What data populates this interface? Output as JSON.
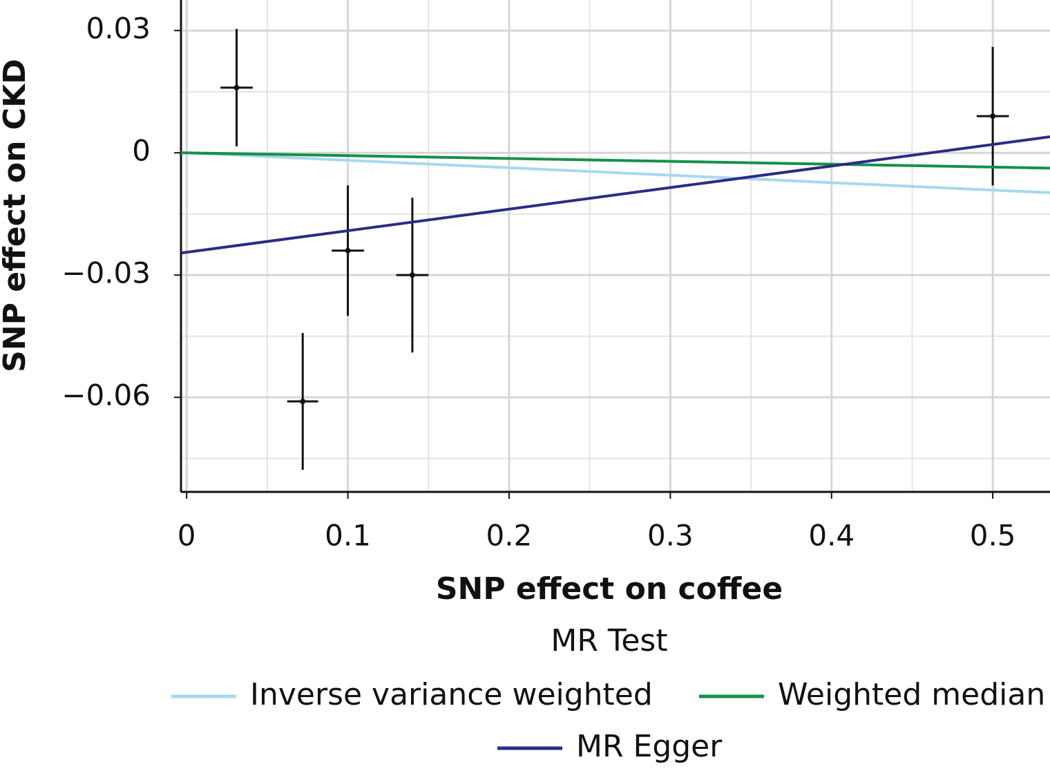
{
  "chart_data": {
    "type": "scatter",
    "xlabel": "SNP effect on coffee",
    "ylabel": "SNP effect on CKD",
    "xlim": [
      -0.0035,
      0.5355
    ],
    "ylim": [
      -0.0832,
      0.0375
    ],
    "xticks": [
      0,
      0.1,
      0.2,
      0.3,
      0.4,
      0.5
    ],
    "yticks": [
      {
        "value": -0.06,
        "label": "−0.06"
      },
      {
        "value": -0.03,
        "label": "−0.03"
      },
      0,
      0.03
    ],
    "xminor": [
      0.05,
      0.15,
      0.25,
      0.35,
      0.45
    ],
    "yminor": [
      -0.075,
      -0.045,
      -0.015,
      0.015
    ],
    "grid": true,
    "points": {
      "color": "#111111",
      "x": [
        0.031,
        0.072,
        0.1,
        0.14,
        0.5
      ],
      "y": [
        0.016,
        -0.061,
        -0.024,
        -0.03,
        0.009
      ],
      "xerr": [
        0.01,
        0.0096,
        0.01,
        0.01,
        0.01
      ],
      "yerr": [
        0.0144,
        0.0168,
        0.016,
        0.019,
        0.017
      ]
    },
    "legend_title": "MR Test",
    "lines": [
      {
        "name": "Inverse variance weighted",
        "color": "#a6d8f0",
        "intercept": 0,
        "slope": -0.0183
      },
      {
        "name": "Weighted median",
        "color": "#14914a",
        "intercept": 0,
        "slope": -0.007
      },
      {
        "name": "MR Egger",
        "color": "#2b2b86",
        "intercept": -0.0244,
        "slope": 0.0529
      }
    ]
  }
}
